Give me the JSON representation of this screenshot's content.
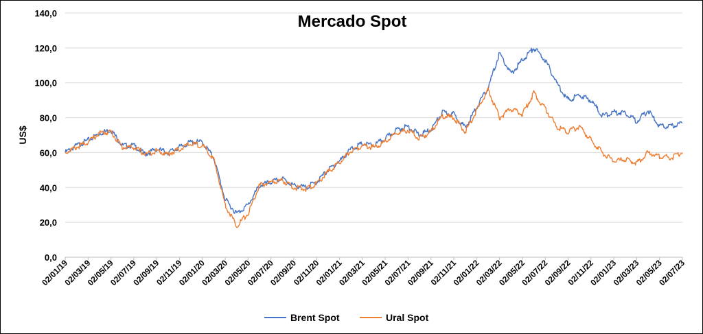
{
  "chart_data": {
    "type": "line",
    "title": "Mercado Spot",
    "ylabel": "US$",
    "xlabel": "",
    "ylim": [
      0,
      140
    ],
    "y_ticks": [
      "0,0",
      "20,0",
      "40,0",
      "60,0",
      "80,0",
      "100,0",
      "120,0",
      "140,0"
    ],
    "x_ticks": [
      "02/01/19",
      "02/03/19",
      "02/05/19",
      "02/07/19",
      "02/09/19",
      "02/11/19",
      "02/01/20",
      "02/03/20",
      "02/05/20",
      "02/07/20",
      "02/09/20",
      "02/11/20",
      "02/01/21",
      "02/03/21",
      "02/05/21",
      "02/07/21",
      "02/09/21",
      "02/11/21",
      "02/01/22",
      "02/03/22",
      "02/05/22",
      "02/07/22",
      "02/09/22",
      "02/11/22",
      "02/01/23",
      "02/03/23",
      "02/05/23",
      "02/07/23"
    ],
    "grid": true,
    "legend_position": "bottom",
    "x": [
      "01/2019",
      "02/2019",
      "03/2019",
      "04/2019",
      "05/2019",
      "06/2019",
      "07/2019",
      "08/2019",
      "09/2019",
      "10/2019",
      "11/2019",
      "12/2019",
      "01/2020",
      "02/2020",
      "03/2020",
      "04/2020",
      "05/2020",
      "06/2020",
      "07/2020",
      "08/2020",
      "09/2020",
      "10/2020",
      "11/2020",
      "12/2020",
      "01/2021",
      "02/2021",
      "03/2021",
      "04/2021",
      "05/2021",
      "06/2021",
      "07/2021",
      "08/2021",
      "09/2021",
      "10/2021",
      "11/2021",
      "12/2021",
      "01/2022",
      "02/2022",
      "03/2022",
      "04/2022",
      "05/2022",
      "06/2022",
      "07/2022",
      "08/2022",
      "09/2022",
      "10/2022",
      "11/2022",
      "12/2022",
      "01/2023",
      "02/2023",
      "03/2023",
      "04/2023",
      "05/2023",
      "06/2023",
      "07/2023"
    ],
    "series": [
      {
        "name": "Brent Spot",
        "color": "#4472C4",
        "values": [
          60,
          64,
          67,
          71,
          73,
          64,
          64,
          59,
          62,
          60,
          63,
          66,
          66,
          57,
          33,
          25,
          30,
          41,
          43,
          45,
          41,
          40,
          43,
          50,
          55,
          62,
          65,
          64,
          68,
          73,
          75,
          70,
          73,
          83,
          82,
          74,
          86,
          97,
          117,
          105,
          113,
          120,
          113,
          100,
          90,
          93,
          90,
          81,
          83,
          83,
          78,
          84,
          75,
          75,
          77
        ]
      },
      {
        "name": "Ural Spot",
        "color": "#ED7D31",
        "values": [
          60,
          63,
          66,
          71,
          72,
          63,
          63,
          59,
          61,
          59,
          62,
          65,
          64,
          56,
          30,
          18,
          25,
          41,
          43,
          44,
          40,
          39,
          42,
          49,
          54,
          61,
          64,
          63,
          66,
          71,
          73,
          68,
          72,
          81,
          80,
          72,
          84,
          96,
          80,
          85,
          82,
          94,
          85,
          75,
          72,
          75,
          67,
          60,
          55,
          56,
          54,
          60,
          58,
          57,
          60
        ]
      }
    ]
  }
}
